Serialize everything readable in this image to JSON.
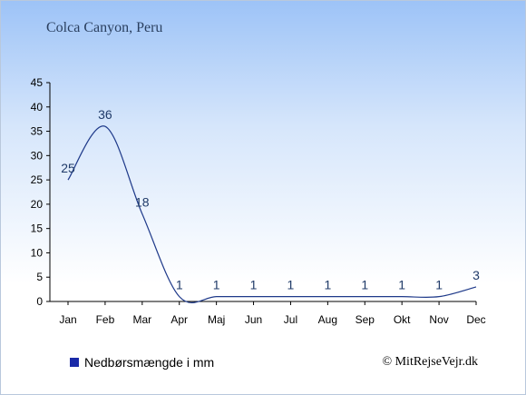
{
  "title": "Colca Canyon, Peru",
  "credit": "© MitRejseVejr.dk",
  "colors": {
    "line": "#1f3a8a",
    "swatch": "#1a2aa8",
    "axis": "#000000"
  },
  "chart_data": {
    "type": "line",
    "title": "Colca Canyon, Peru",
    "xlabel": "",
    "ylabel": "",
    "categories": [
      "Jan",
      "Feb",
      "Mar",
      "Apr",
      "Maj",
      "Jun",
      "Jul",
      "Aug",
      "Sep",
      "Okt",
      "Nov",
      "Dec"
    ],
    "series": [
      {
        "name": "Nedbørsmængde i mm",
        "values": [
          25,
          36,
          18,
          1,
          1,
          1,
          1,
          1,
          1,
          1,
          1,
          3
        ]
      }
    ],
    "ylim": [
      0,
      45
    ],
    "yticks": [
      0,
      5,
      10,
      15,
      20,
      25,
      30,
      35,
      40,
      45
    ],
    "grid": false,
    "legend": "bottom-left"
  }
}
